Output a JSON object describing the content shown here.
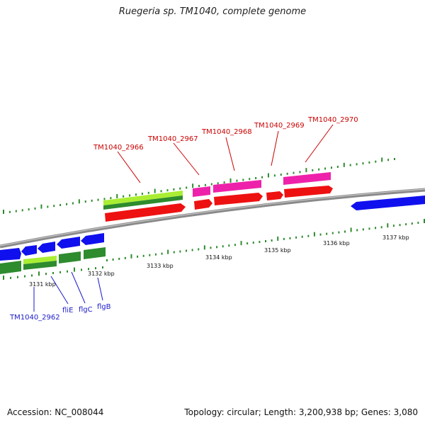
{
  "title": "Ruegeria sp. TM1040, complete genome",
  "footer": {
    "accession": "Accession: NC_008044",
    "summary": "Topology: circular; Length: 3,200,938 bp; Genes: 3,080"
  },
  "colors": {
    "backbone": "#8a8a8a",
    "tick": "#2e8b2e",
    "cds_forward": "#ee1111",
    "gene_forward_label": "#cc0000",
    "cds_reverse": "#1010ee",
    "gene_reverse_label": "#1a1acc",
    "rna": "#ee22aa",
    "feature_lime": "#aaee33",
    "feature_green": "#2e8b2e"
  },
  "ticks": [
    {
      "label": "3131 kbp"
    },
    {
      "label": "3132 kbp"
    },
    {
      "label": "3133 kbp"
    },
    {
      "label": "3134 kbp"
    },
    {
      "label": "3135 kbp"
    },
    {
      "label": "3136 kbp"
    },
    {
      "label": "3137 kbp"
    }
  ],
  "genes_top": [
    {
      "label": "TM1040_2966"
    },
    {
      "label": "TM1040_2967"
    },
    {
      "label": "TM1040_2968"
    },
    {
      "label": "TM1040_2969"
    },
    {
      "label": "TM1040_2970"
    }
  ],
  "genes_bottom": [
    {
      "label": "TM1040_2962"
    },
    {
      "label": "fliE"
    },
    {
      "label": "flgC"
    },
    {
      "label": "flgB"
    }
  ]
}
